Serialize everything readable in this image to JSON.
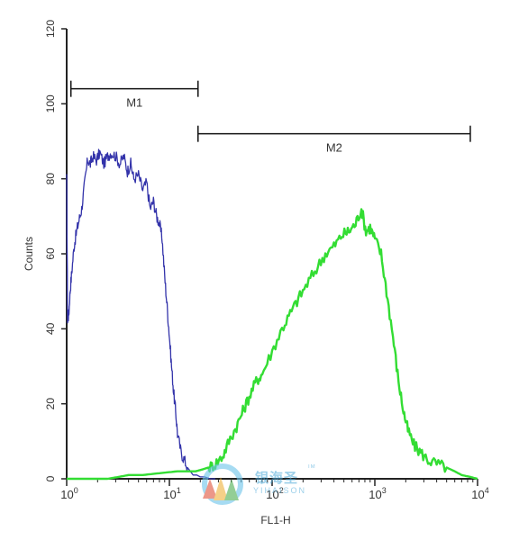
{
  "chart_data": {
    "type": "line",
    "xlabel": "FL1-H",
    "ylabel": "Counts",
    "xscale": "log",
    "xlim": [
      1,
      10000
    ],
    "ylim": [
      0,
      120
    ],
    "yticks": [
      0,
      20,
      40,
      60,
      80,
      100,
      120
    ],
    "xticks": [
      {
        "base": "10",
        "exp": "0"
      },
      {
        "base": "10",
        "exp": "1"
      },
      {
        "base": "10",
        "exp": "2"
      },
      {
        "base": "10",
        "exp": "3"
      },
      {
        "base": "10",
        "exp": "4"
      }
    ],
    "grid": false,
    "markers": [
      {
        "label": "M1",
        "x_start": 1.1,
        "x_end": 19,
        "y": 104
      },
      {
        "label": "M2",
        "x_start": 19,
        "x_end": 8500,
        "y": 92
      }
    ],
    "series": [
      {
        "color": "#3333aa",
        "x": [
          1.0,
          1.02,
          1.05,
          1.08,
          1.12,
          1.18,
          1.25,
          1.32,
          1.4,
          1.5,
          1.6,
          1.7,
          1.8,
          1.95,
          2.1,
          2.3,
          2.5,
          2.7,
          3.0,
          3.3,
          3.6,
          3.9,
          4.2,
          4.5,
          5.0,
          5.5,
          6.0,
          6.5,
          7.0,
          7.5,
          8.0,
          8.5,
          9.0,
          9.5,
          10.0,
          10.5,
          11.0,
          11.5,
          12.0,
          13.0,
          14.0,
          15.0,
          16.0,
          17.0,
          18.5,
          20.0,
          22.0,
          25.0,
          28.0
        ],
        "values": [
          80,
          42,
          44,
          50,
          55,
          62,
          66,
          69,
          72,
          79,
          85,
          84,
          86,
          85,
          87,
          84,
          86,
          87,
          86,
          84,
          86,
          82,
          84,
          80,
          81,
          77,
          79,
          72,
          74,
          70,
          68,
          64,
          54,
          46,
          38,
          30,
          23,
          18,
          12,
          7,
          5,
          3,
          2,
          1,
          1,
          0.5,
          0.5,
          0,
          0
        ]
      },
      {
        "color": "#33dd33",
        "x": [
          1.0,
          2.5,
          3.2,
          4.0,
          5.5,
          8.0,
          12.0,
          15.0,
          18.0,
          21.0,
          24.0,
          28.0,
          33.0,
          38.0,
          45.0,
          52.0,
          60.0,
          70.0,
          80.0,
          100.0,
          125.0,
          150.0,
          180.0,
          220.0,
          270.0,
          330.0,
          400.0,
          480.0,
          560.0,
          650.0,
          740.0,
          820.0,
          900.0,
          1000.0,
          1150.0,
          1300.0,
          1500.0,
          1700.0,
          1900.0,
          2100.0,
          2400.0,
          2800.0,
          3300.0,
          4000.0,
          5000.0,
          6000.0,
          7000.0,
          8500.0,
          10000.0
        ],
        "values": [
          0,
          0,
          0.5,
          1,
          1,
          1.5,
          2,
          2,
          2,
          2.5,
          3,
          4,
          6,
          10,
          14,
          18,
          22,
          26,
          28,
          34,
          40,
          44,
          48,
          52,
          56,
          60,
          62,
          65,
          66,
          68,
          72,
          66,
          67,
          64,
          60,
          50,
          38,
          26,
          18,
          13,
          9,
          7,
          5,
          4,
          3,
          2,
          1,
          0.5,
          0
        ]
      }
    ]
  },
  "watermark": {
    "cn_text": "银海圣",
    "en_text": "YIHAISON",
    "tm": "TM"
  }
}
